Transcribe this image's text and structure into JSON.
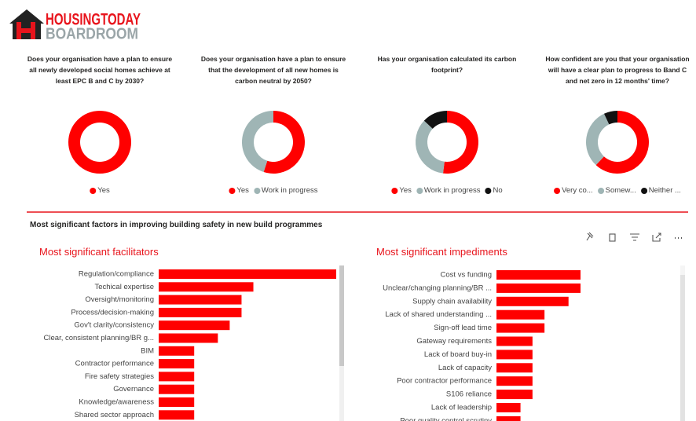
{
  "logo": {
    "line1": "HOUSINGTODAY",
    "line2": "BOARDROOM"
  },
  "section_title": "Most significant factors in improving building safety in new build programmes",
  "chart_data": [
    {
      "type": "donut",
      "title": "Does your organisation have a plan to ensure all newly developed social homes achieve at least EPC B and C by 2030?",
      "categories": [
        "Yes"
      ],
      "values": [
        100
      ],
      "colors": [
        "#ff0000"
      ]
    },
    {
      "type": "donut",
      "title": "Does your organisation have a plan to ensure that the development of all new homes is carbon neutral by 2050?",
      "categories": [
        "Yes",
        "Work in progress"
      ],
      "values": [
        55,
        45
      ],
      "colors": [
        "#ff0000",
        "#9fb5b5"
      ]
    },
    {
      "type": "donut",
      "title": "Has your organisation calculated its carbon footprint?",
      "categories": [
        "Yes",
        "Work in progress",
        "No"
      ],
      "values": [
        52,
        35,
        13
      ],
      "colors": [
        "#ff0000",
        "#9fb5b5",
        "#111111"
      ]
    },
    {
      "type": "donut",
      "title": "How confident are you that your organisation will have a clear plan to progress to Band C and net zero in 12 months' time?",
      "categories": [
        "Very co...",
        "Somew...",
        "Neither ..."
      ],
      "values": [
        62,
        31,
        7
      ],
      "colors": [
        "#ff0000",
        "#9fb5b5",
        "#111111"
      ]
    },
    {
      "type": "bar",
      "orientation": "horizontal",
      "title": "Most significant facilitators",
      "color": "#ff0000",
      "categories": [
        "Regulation/compliance",
        "Techical expertise",
        "Oversight/monitoring",
        "Process/decision-making",
        "Gov't clarity/consistency",
        "Clear, consistent planning/BR g...",
        "BIM",
        "Contractor performance",
        "Fire safety strategies",
        "Governance",
        "Knowledge/awareness",
        "Shared sector approach"
      ],
      "values": [
        15,
        8,
        7,
        7,
        6,
        5,
        3,
        3,
        3,
        3,
        3,
        3
      ]
    },
    {
      "type": "bar",
      "orientation": "horizontal",
      "title": "Most significant impediments",
      "color": "#ff0000",
      "categories": [
        "Cost vs funding",
        "Unclear/changing planning/BR ...",
        "Supply chain availability",
        "Lack of shared understanding ...",
        "Sign-off lead time",
        "Gateway requirements",
        "Lack of board buy-in",
        "Lack of capacity",
        "Poor contractor performance",
        "S106 reliance",
        "Lack of leadership",
        "Poor quality control scrutiny"
      ],
      "values": [
        7,
        7,
        6,
        4,
        4,
        3,
        3,
        3,
        3,
        3,
        2,
        2
      ]
    }
  ]
}
